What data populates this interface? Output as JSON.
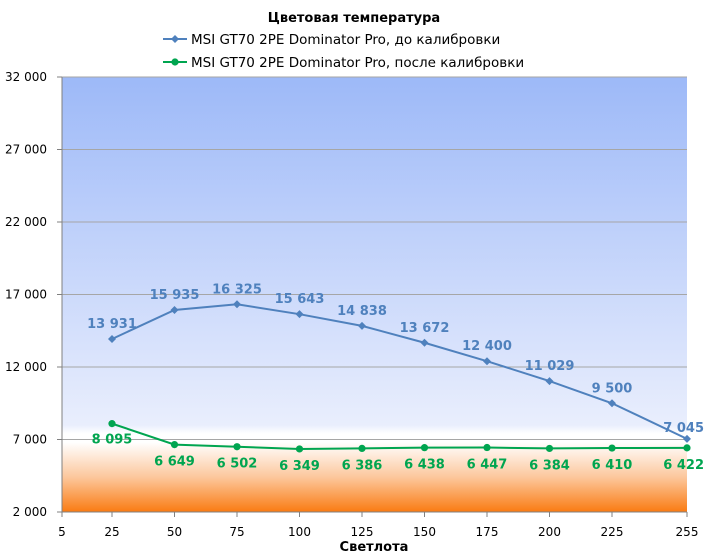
{
  "chart_data": {
    "type": "line",
    "title": "Цветовая температура",
    "xlabel": "Светлота",
    "ylabel": "",
    "x_ticks": [
      "5",
      "25",
      "50",
      "75",
      "100",
      "125",
      "150",
      "175",
      "200",
      "225",
      "255"
    ],
    "x": [
      25,
      50,
      75,
      100,
      125,
      150,
      175,
      200,
      225,
      255
    ],
    "xlim": [
      5,
      255
    ],
    "y_ticks": [
      "2 000",
      "7 000",
      "12 000",
      "17 000",
      "22 000",
      "27 000",
      "32 000"
    ],
    "ylim": [
      2000,
      32000
    ],
    "grid": true,
    "legend_position": "top",
    "series": [
      {
        "name": "MSI GT70 2PE Dominator Pro, до калибровки",
        "color": "#4f81bd",
        "marker": "diamond",
        "values": [
          13931,
          15935,
          16325,
          15643,
          14838,
          13672,
          12400,
          11029,
          9500,
          7045
        ],
        "labels": [
          "13 931",
          "15 935",
          "16 325",
          "15 643",
          "14 838",
          "13 672",
          "12 400",
          "11 029",
          "9 500",
          "7 045"
        ]
      },
      {
        "name": "MSI GT70 2PE Dominator Pro, после калибровки",
        "color": "#00a550",
        "marker": "circle",
        "values": [
          8095,
          6649,
          6502,
          6349,
          6386,
          6438,
          6447,
          6384,
          6410,
          6422
        ],
        "labels": [
          "8 095",
          "6 649",
          "6 502",
          "6 349",
          "6 386",
          "6 438",
          "6 447",
          "6 384",
          "6 410",
          "6 422"
        ]
      }
    ]
  }
}
